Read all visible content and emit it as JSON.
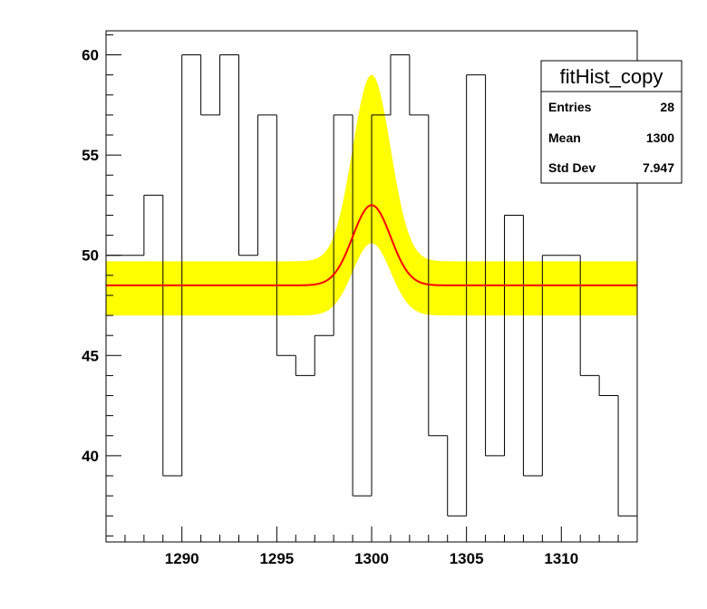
{
  "chart_data": {
    "type": "histogram",
    "title": "",
    "xlabel": "",
    "ylabel": "",
    "xlim": [
      1286,
      1314
    ],
    "ylim": [
      35.7,
      61.2
    ],
    "x_ticks": [
      1290,
      1295,
      1300,
      1305,
      1310
    ],
    "y_ticks": [
      40,
      45,
      50,
      55,
      60
    ],
    "bins": {
      "edges": [
        1286,
        1287,
        1288,
        1289,
        1290,
        1291,
        1292,
        1293,
        1294,
        1295,
        1296,
        1297,
        1298,
        1299,
        1300,
        1301,
        1302,
        1303,
        1304,
        1305,
        1306,
        1307,
        1308,
        1309,
        1310,
        1311,
        1312,
        1313,
        1314
      ],
      "counts": [
        50,
        50,
        53,
        39,
        60,
        57,
        60,
        50,
        57,
        45,
        44,
        46,
        57,
        38,
        57,
        60,
        57,
        41,
        37,
        59,
        40,
        52,
        39,
        50,
        50,
        44,
        43,
        37
      ]
    },
    "fit": {
      "function": "gaus(0)+pol0(3)",
      "constant": 48.5,
      "amplitude": 4.0,
      "mean": 1300.0,
      "sigma": 1.0,
      "line_color": "#ff0000"
    },
    "confidence_band": {
      "lower_constant": 47.0,
      "upper_constant": 49.7,
      "lower_peak": 50.6,
      "upper_peak": 59.0,
      "color": "#ffff00"
    },
    "grid": false,
    "legend": "none",
    "stats_box": {
      "position": "top-right",
      "title": "fitHist_copy",
      "rows": [
        {
          "label": "Entries",
          "value": "28"
        },
        {
          "label": "Mean",
          "value": "1300"
        },
        {
          "label": "Std Dev",
          "value": "7.947"
        }
      ]
    }
  }
}
